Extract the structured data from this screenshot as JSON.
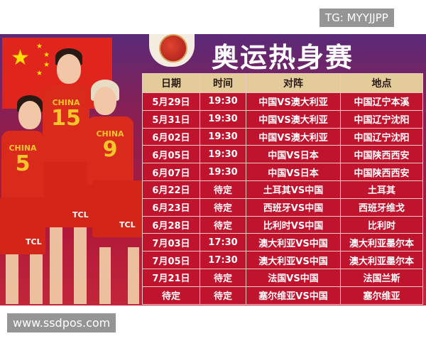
{
  "title": "奥运热身赛",
  "table": {
    "headers": [
      "日期",
      "时间",
      "对阵",
      "地点"
    ],
    "rows": [
      [
        "5月29日",
        "19:30",
        "中国VS澳大利亚",
        "中国辽宁本溪"
      ],
      [
        "5月31日",
        "19:30",
        "中国VS澳大利亚",
        "中国辽宁沈阳"
      ],
      [
        "6月02日",
        "19:30",
        "中国VS澳大利亚",
        "中国辽宁沈阳"
      ],
      [
        "6月05日",
        "19:30",
        "中国VS日本",
        "中国陕西西安"
      ],
      [
        "6月07日",
        "19:30",
        "中国VS日本",
        "中国陕西西安"
      ],
      [
        "6月22日",
        "待定",
        "土耳其VS中国",
        "土耳其"
      ],
      [
        "6月23日",
        "待定",
        "西班牙VS中国",
        "西班牙维戈"
      ],
      [
        "6月28日",
        "待定",
        "比利时VS中国",
        "比利时"
      ],
      [
        "7月03日",
        "17:30",
        "澳大利亚VS中国",
        "澳大利亚墨尔本"
      ],
      [
        "7月05日",
        "17:30",
        "澳大利亚VS中国",
        "澳大利亚墨尔本"
      ],
      [
        "7月21日",
        "待定",
        "法国VS中国",
        "法国兰斯"
      ],
      [
        "待定",
        "待定",
        "塞尔维亚VS中国",
        "塞尔维亚"
      ]
    ]
  },
  "players": [
    {
      "team": "CHINA",
      "number": "5",
      "sponsor": "TCL"
    },
    {
      "team": "CHINA",
      "number": "15",
      "sponsor": "TCL"
    },
    {
      "team": "CHINA",
      "number": "9",
      "sponsor": "TCL"
    }
  ],
  "watermarks": {
    "top_right": "TG: MYYJJPP",
    "bottom_left": "www.ssdpos.com"
  },
  "colors": {
    "table_header": "#e4cb9a",
    "table_cell": "#c0132e",
    "flag_red": "#e0261c",
    "flag_star": "#ffde00"
  }
}
